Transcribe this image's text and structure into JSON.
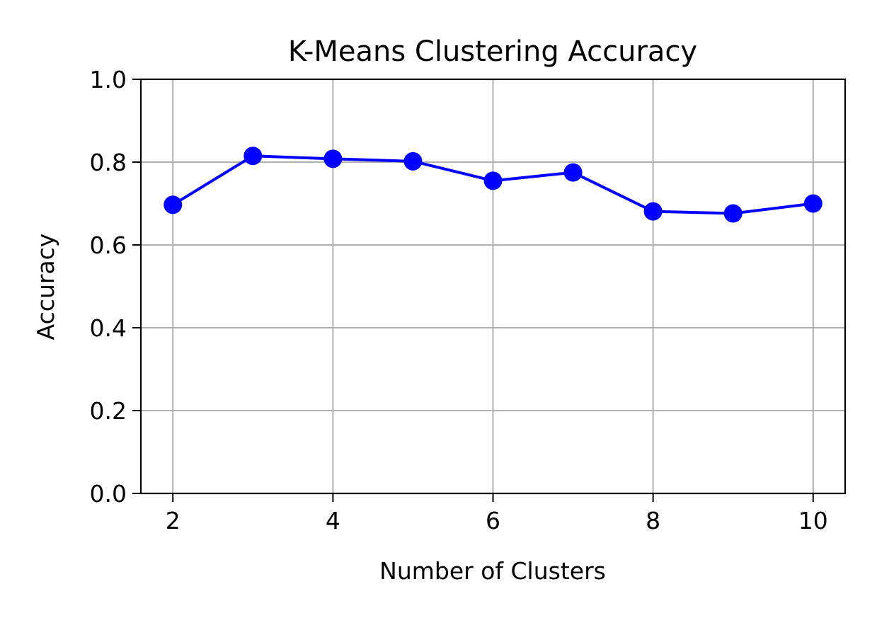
{
  "chart_data": {
    "type": "line",
    "title": "K-Means Clustering Accuracy",
    "xlabel": "Number of Clusters",
    "ylabel": "Accuracy",
    "xlim": [
      1.6,
      10.4
    ],
    "ylim": [
      0.0,
      1.0
    ],
    "xticks": [
      2,
      4,
      6,
      8,
      10
    ],
    "yticks": [
      0.0,
      0.2,
      0.4,
      0.6,
      0.8,
      1.0
    ],
    "xtick_labels": [
      "2",
      "4",
      "6",
      "8",
      "10"
    ],
    "ytick_labels": [
      "0.0",
      "0.2",
      "0.4",
      "0.6",
      "0.8",
      "1.0"
    ],
    "grid": true,
    "marker": "circle",
    "series": [
      {
        "color": "#0000ff",
        "x": [
          2,
          3,
          4,
          5,
          6,
          7,
          8,
          9,
          10
        ],
        "y": [
          0.697,
          0.815,
          0.808,
          0.802,
          0.755,
          0.775,
          0.681,
          0.676,
          0.7
        ]
      }
    ]
  }
}
